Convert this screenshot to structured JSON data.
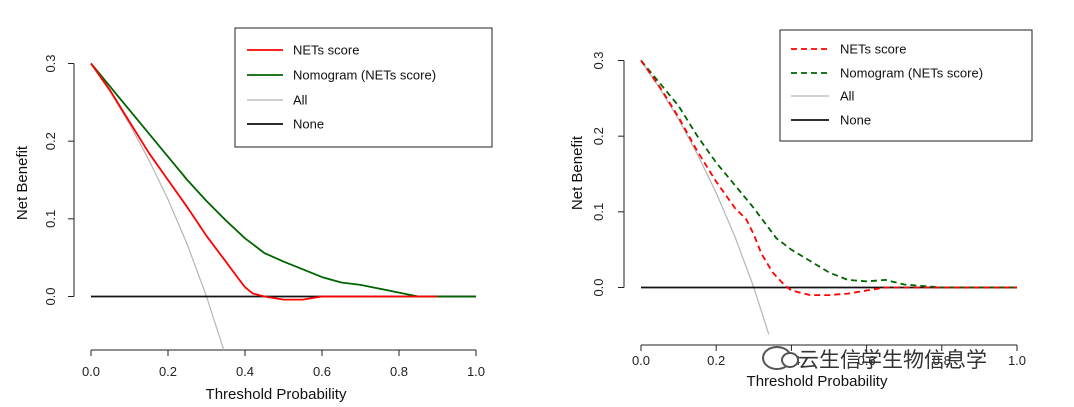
{
  "chart_data": [
    {
      "type": "line",
      "title": "",
      "xlabel": "Threshold Probability",
      "ylabel": "Net Benefit",
      "xlim": [
        0,
        1
      ],
      "ylim": [
        -0.06,
        0.31
      ],
      "xticks": [
        "0.0",
        "0.2",
        "0.4",
        "0.6",
        "0.8",
        "1.0"
      ],
      "yticks": [
        "0.0",
        "0.1",
        "0.2",
        "0.3"
      ],
      "legend_position": "top-right",
      "series": [
        {
          "name": "NETs score",
          "color": "#ff0000",
          "dash": "solid",
          "x": [
            0,
            0.05,
            0.1,
            0.15,
            0.2,
            0.25,
            0.3,
            0.35,
            0.38,
            0.4,
            0.42,
            0.45,
            0.5,
            0.55,
            0.6,
            0.7,
            0.8,
            0.85,
            0.9
          ],
          "y": [
            0.3,
            0.265,
            0.225,
            0.185,
            0.15,
            0.115,
            0.078,
            0.045,
            0.025,
            0.012,
            0.004,
            0.0,
            -0.004,
            -0.004,
            0.0,
            0.0,
            0.0,
            0.0,
            0.0
          ]
        },
        {
          "name": "Nomogram (NETs score)",
          "color": "#006400",
          "dash": "solid",
          "x": [
            0,
            0.05,
            0.1,
            0.15,
            0.2,
            0.25,
            0.3,
            0.35,
            0.4,
            0.45,
            0.5,
            0.55,
            0.6,
            0.65,
            0.7,
            0.75,
            0.8,
            0.85,
            0.9,
            1.0
          ],
          "y": [
            0.3,
            0.27,
            0.24,
            0.21,
            0.18,
            0.15,
            0.123,
            0.098,
            0.075,
            0.056,
            0.045,
            0.035,
            0.025,
            0.018,
            0.015,
            0.01,
            0.005,
            0.0,
            0.0,
            0.0
          ]
        },
        {
          "name": "All",
          "color": "#b5b5b5",
          "dash": "solid",
          "x": [
            0,
            0.05,
            0.1,
            0.15,
            0.2,
            0.25,
            0.3,
            0.35
          ],
          "y": [
            0.3,
            0.263,
            0.222,
            0.176,
            0.125,
            0.067,
            0.0,
            -0.077
          ]
        },
        {
          "name": "None",
          "color": "#111111",
          "dash": "solid",
          "x": [
            0,
            1
          ],
          "y": [
            0,
            0
          ]
        }
      ]
    },
    {
      "type": "line",
      "title": "",
      "xlabel": "Threshold Probability",
      "ylabel": "Net Benefit",
      "xlim": [
        0,
        1
      ],
      "ylim": [
        -0.06,
        0.31
      ],
      "xticks": [
        "0.0",
        "0.2",
        "0.4",
        "0.6",
        "0.8",
        "1.0"
      ],
      "yticks": [
        "0.0",
        "0.1",
        "0.2",
        "0.3"
      ],
      "legend_position": "top-right",
      "series": [
        {
          "name": "NETs score",
          "color": "#ff0000",
          "dash": "dashed",
          "x": [
            0,
            0.05,
            0.1,
            0.15,
            0.2,
            0.25,
            0.28,
            0.3,
            0.32,
            0.35,
            0.38,
            0.4,
            0.45,
            0.5,
            0.55,
            0.6,
            0.65,
            0.7,
            0.8,
            1.0
          ],
          "y": [
            0.3,
            0.265,
            0.225,
            0.18,
            0.14,
            0.105,
            0.09,
            0.07,
            0.045,
            0.02,
            0.004,
            -0.004,
            -0.01,
            -0.01,
            -0.008,
            -0.004,
            0.0,
            0.0,
            0.0,
            0.0
          ]
        },
        {
          "name": "Nomogram (NETs score)",
          "color": "#006400",
          "dash": "dashed",
          "x": [
            0,
            0.05,
            0.1,
            0.15,
            0.2,
            0.25,
            0.3,
            0.33,
            0.36,
            0.4,
            0.45,
            0.5,
            0.55,
            0.6,
            0.65,
            0.7,
            0.75,
            0.8,
            0.9,
            1.0
          ],
          "y": [
            0.3,
            0.27,
            0.24,
            0.2,
            0.165,
            0.135,
            0.105,
            0.085,
            0.065,
            0.05,
            0.035,
            0.02,
            0.01,
            0.008,
            0.01,
            0.004,
            0.002,
            0.0,
            0.0,
            0.0
          ]
        },
        {
          "name": "All",
          "color": "#b5b5b5",
          "dash": "solid",
          "x": [
            0,
            0.05,
            0.1,
            0.15,
            0.2,
            0.25,
            0.3,
            0.34
          ],
          "y": [
            0.3,
            0.263,
            0.222,
            0.176,
            0.125,
            0.067,
            0.0,
            -0.062
          ]
        },
        {
          "name": "None",
          "color": "#111111",
          "dash": "solid",
          "x": [
            0,
            1
          ],
          "y": [
            0,
            0
          ]
        }
      ]
    }
  ],
  "watermark": {
    "text": "云生信学生物信息学",
    "icon": "wechat-icon"
  }
}
